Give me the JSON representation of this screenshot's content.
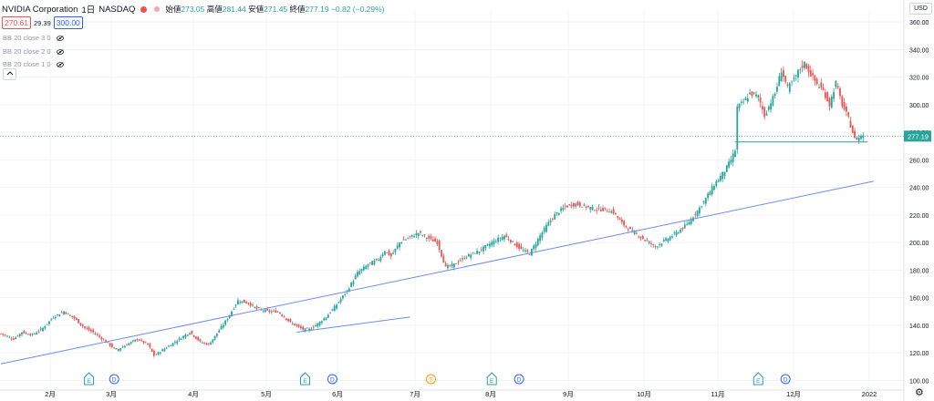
{
  "header": {
    "symbol": "NVIDIA Corporation",
    "interval": "1日",
    "exchange": "NASDAQ",
    "open_label": "始値",
    "open": "273.05",
    "high_label": "高値",
    "high": "281.44",
    "low_label": "安値",
    "low": "271.45",
    "close_label": "終値",
    "close": "277.19",
    "change": "−0.82 (−0.29%)"
  },
  "trade": {
    "sell": "270.61",
    "spread": "29.39",
    "buy": "300.00"
  },
  "indicators": [
    "BB 20 close 3 0",
    "BB 20 close 2 0",
    "BB 20 close 1 0"
  ],
  "currency": "USD",
  "colors": {
    "up": "#26a69a",
    "down": "#ef5350",
    "trend": "#6d8dea",
    "dividend": "#2962ff",
    "split": "#ff9800"
  },
  "chart_data": {
    "type": "candlestick",
    "ylim": [
      95,
      368
    ],
    "y_ticks": [
      "100.00",
      "120.00",
      "140.00",
      "160.00",
      "180.00",
      "200.00",
      "220.00",
      "240.00",
      "260.00",
      "280.00",
      "300.00",
      "320.00",
      "340.00",
      "360.00"
    ],
    "x_ticks": [
      "2月",
      "3月",
      "4月",
      "5月",
      "6月",
      "7月",
      "8月",
      "9月",
      "10月",
      "11月",
      "12月",
      "2022"
    ],
    "last_price": "277.19",
    "anchors": [
      [
        0,
        134
      ],
      [
        6,
        130
      ],
      [
        10,
        135
      ],
      [
        15,
        133
      ],
      [
        20,
        138
      ],
      [
        25,
        146
      ],
      [
        30,
        150
      ],
      [
        35,
        145
      ],
      [
        40,
        138
      ],
      [
        45,
        134
      ],
      [
        50,
        128
      ],
      [
        55,
        122
      ],
      [
        60,
        126
      ],
      [
        65,
        130
      ],
      [
        70,
        126
      ],
      [
        73,
        118
      ],
      [
        78,
        123
      ],
      [
        85,
        130
      ],
      [
        90,
        135
      ],
      [
        95,
        128
      ],
      [
        99,
        126
      ],
      [
        102,
        132
      ],
      [
        108,
        145
      ],
      [
        113,
        158
      ],
      [
        118,
        156
      ],
      [
        122,
        152
      ],
      [
        128,
        150
      ],
      [
        132,
        150
      ],
      [
        138,
        142
      ],
      [
        144,
        137
      ],
      [
        147,
        137
      ],
      [
        150,
        140
      ],
      [
        155,
        146
      ],
      [
        160,
        155
      ],
      [
        165,
        165
      ],
      [
        170,
        178
      ],
      [
        175,
        184
      ],
      [
        180,
        188
      ],
      [
        183,
        194
      ],
      [
        186,
        190
      ],
      [
        190,
        200
      ],
      [
        195,
        204
      ],
      [
        199,
        207
      ],
      [
        204,
        203
      ],
      [
        208,
        200
      ],
      [
        212,
        182
      ],
      [
        216,
        184
      ],
      [
        222,
        190
      ],
      [
        228,
        194
      ],
      [
        234,
        200
      ],
      [
        240,
        205
      ],
      [
        244,
        200
      ],
      [
        248,
        195
      ],
      [
        252,
        192
      ],
      [
        257,
        205
      ],
      [
        260,
        212
      ],
      [
        264,
        220
      ],
      [
        269,
        226
      ],
      [
        274,
        228
      ],
      [
        279,
        226
      ],
      [
        284,
        224
      ],
      [
        288,
        224
      ],
      [
        292,
        222
      ],
      [
        296,
        214
      ],
      [
        300,
        209
      ],
      [
        305,
        204
      ],
      [
        309,
        200
      ],
      [
        312,
        197
      ],
      [
        317,
        202
      ],
      [
        322,
        207
      ],
      [
        327,
        213
      ],
      [
        332,
        223
      ],
      [
        336,
        232
      ],
      [
        340,
        242
      ],
      [
        345,
        252
      ],
      [
        348,
        260
      ],
      [
        350,
        267
      ],
      [
        351,
        298
      ],
      [
        354,
        302
      ],
      [
        357,
        308
      ],
      [
        361,
        306
      ],
      [
        364,
        292
      ],
      [
        367,
        302
      ],
      [
        369,
        308
      ],
      [
        372,
        325
      ],
      [
        375,
        312
      ],
      [
        378,
        318
      ],
      [
        380,
        324
      ],
      [
        383,
        330
      ],
      [
        386,
        322
      ],
      [
        389,
        315
      ],
      [
        392,
        310
      ],
      [
        395,
        300
      ],
      [
        398,
        316
      ],
      [
        401,
        300
      ],
      [
        404,
        290
      ],
      [
        407,
        275
      ],
      [
        409,
        276
      ],
      [
        410,
        278
      ],
      [
        411,
        277.19
      ]
    ]
  },
  "trendlines": {
    "long": [
      [
        0,
        112
      ],
      [
        416,
        244.5
      ]
    ],
    "short": [
      [
        141,
        135
      ],
      [
        195,
        146
      ]
    ]
  },
  "horizontal_line": {
    "value": 273,
    "start": 350,
    "end": 411
  },
  "events": [
    {
      "type": "E",
      "x": 42
    },
    {
      "type": "D",
      "x": 54
    },
    {
      "type": "E",
      "x": 145
    },
    {
      "type": "D",
      "x": 158
    },
    {
      "type": "S",
      "x": 205
    },
    {
      "type": "E",
      "x": 234
    },
    {
      "type": "D",
      "x": 247
    },
    {
      "type": "E",
      "x": 361
    },
    {
      "type": "D",
      "x": 374
    }
  ]
}
